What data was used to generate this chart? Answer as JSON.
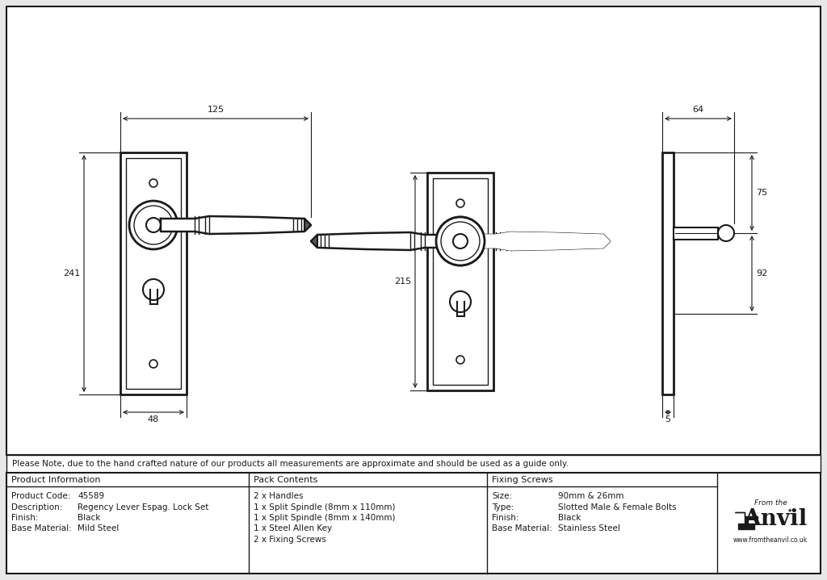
{
  "bg_color": "#e8e8e8",
  "drawing_bg": "#ffffff",
  "line_color": "#1a1a1a",
  "note": "Please Note, due to the hand crafted nature of our products all measurements are approximate and should be used as a guide only.",
  "product_info": {
    "col1_header": "Product Information",
    "col2_header": "Pack Contents",
    "col3_header": "Fixing Screws",
    "product_code_label": "Product Code:",
    "product_code_value": "45589",
    "description_label": "Description:",
    "description_value": "Regency Lever Espag. Lock Set",
    "finish_label": "Finish:",
    "finish_value": "Black",
    "base_material_label": "Base Material:",
    "base_material_value": "Mild Steel",
    "pack_contents": [
      "2 x Handles",
      "1 x Split Spindle (8mm x 110mm)",
      "1 x Split Spindle (8mm x 140mm)",
      "1 x Steel Allen Key",
      "2 x Fixing Screws"
    ],
    "size_label": "Size:",
    "size_value": "90mm & 26mm",
    "type_label": "Type:",
    "type_value": "Slotted Male & Female Bolts",
    "finish2_label": "Finish:",
    "finish2_value": "Black",
    "base_material2_label": "Base Material:",
    "base_material2_value": "Stainless Steel"
  },
  "dim_125": "125",
  "dim_241": "241",
  "dim_48": "48",
  "dim_215": "215",
  "dim_64": "64",
  "dim_75": "75",
  "dim_92": "92",
  "dim_5": "5",
  "anvil_text1": "From the",
  "anvil_text2": "Anvil",
  "anvil_url": "www.fromtheanvil.co.uk"
}
